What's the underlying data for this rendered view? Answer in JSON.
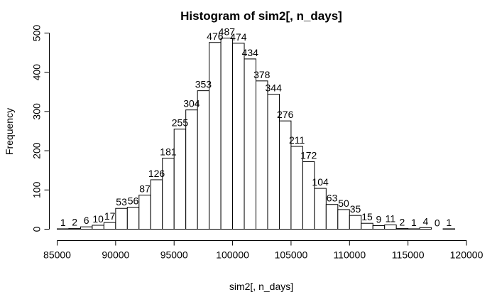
{
  "chart_data": {
    "type": "bar",
    "title": "Histogram of sim2[, n_days]",
    "xlabel": "sim2[, n_days]",
    "ylabel": "Frequency",
    "bin_width": 1000,
    "bin_starts": [
      85000,
      86000,
      87000,
      88000,
      89000,
      90000,
      91000,
      92000,
      93000,
      94000,
      95000,
      96000,
      97000,
      98000,
      99000,
      100000,
      101000,
      102000,
      103000,
      104000,
      105000,
      106000,
      107000,
      108000,
      109000,
      110000,
      111000,
      112000,
      113000,
      114000,
      115000,
      116000,
      117000,
      118000
    ],
    "values": [
      1,
      2,
      6,
      10,
      17,
      53,
      56,
      87,
      126,
      181,
      255,
      304,
      353,
      476,
      487,
      474,
      434,
      378,
      344,
      276,
      211,
      172,
      104,
      63,
      50,
      35,
      15,
      9,
      11,
      2,
      1,
      4,
      0,
      1
    ],
    "data_labels": [
      "1",
      "2",
      "6",
      "10",
      "17",
      "53",
      "56",
      "87",
      "126",
      "181",
      "255",
      "304",
      "353",
      "476",
      "487",
      "474",
      "434",
      "378",
      "344",
      "276",
      "211",
      "172",
      "104",
      "63",
      "50",
      "35",
      "15",
      "9",
      "11",
      "2",
      "1",
      "4",
      "0",
      "1"
    ],
    "xlim": [
      85000,
      120000
    ],
    "ylim": [
      0,
      500
    ],
    "x_ticks": [
      85000,
      90000,
      95000,
      100000,
      105000,
      110000,
      115000,
      120000
    ],
    "x_tick_labels": [
      "85000",
      "90000",
      "95000",
      "100000",
      "105000",
      "110000",
      "115000",
      "120000"
    ],
    "y_ticks": [
      0,
      100,
      200,
      300,
      400,
      500
    ],
    "y_tick_labels": [
      "0",
      "100",
      "200",
      "300",
      "400",
      "500"
    ],
    "grid": false,
    "legend": null,
    "colors": {
      "bar_fill": "#ffffff",
      "bar_stroke": "#000000",
      "text": "#000000"
    }
  }
}
